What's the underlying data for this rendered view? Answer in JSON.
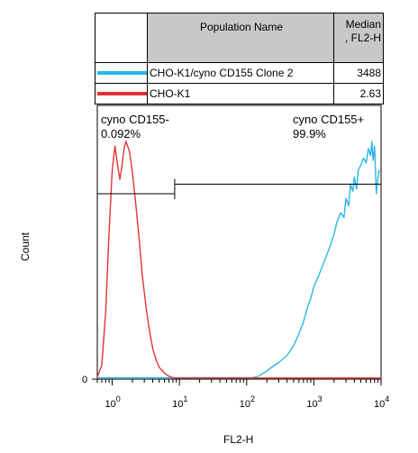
{
  "legend": {
    "header_name": "Population Name",
    "header_median_line1": "Median",
    "header_median_line2": ", FL2-H",
    "rows": [
      {
        "name": "CHO-K1/cyno CD155 Clone 2",
        "median": "3488",
        "color": "#29b6e8"
      },
      {
        "name": "CHO-K1",
        "median": "2.63",
        "color": "#e33434"
      }
    ]
  },
  "chart_data": {
    "type": "line",
    "xlabel": "FL2-H",
    "ylabel": "Count",
    "x_scale": "log",
    "xlim": [
      0.6,
      10000
    ],
    "x_ticks": [
      {
        "base": "10",
        "exp": "0"
      },
      {
        "base": "10",
        "exp": "1"
      },
      {
        "base": "10",
        "exp": "2"
      },
      {
        "base": "10",
        "exp": "3"
      },
      {
        "base": "10",
        "exp": "4"
      }
    ],
    "y_tick_label": "0",
    "ylim": [
      0,
      100
    ],
    "gates": [
      {
        "name": "cyno CD155-",
        "percent": "0.092%",
        "range": [
          0.6,
          8.5
        ],
        "level": 78
      },
      {
        "name": "cyno CD155+",
        "percent": "99.9%",
        "range": [
          8.5,
          10000
        ],
        "level": 82
      }
    ],
    "series": [
      {
        "name": "CHO-K1/cyno CD155 Clone 2",
        "color": "#29b6e8",
        "x": [
          0.6,
          50,
          120,
          150,
          200,
          250,
          300,
          400,
          500,
          600,
          700,
          800,
          900,
          1000,
          1200,
          1500,
          1800,
          2000,
          2200,
          2500,
          2800,
          3000,
          3300,
          3500,
          3800,
          4000,
          4300,
          4600,
          5000,
          5500,
          6000,
          6500,
          7000,
          7300,
          7600,
          8000,
          8500,
          9000,
          9400
        ],
        "y": [
          0.6,
          0.6,
          0.6,
          1.2,
          3.5,
          5.5,
          7,
          10,
          14,
          19,
          24,
          30,
          34,
          39,
          44,
          51,
          57,
          61,
          66,
          70,
          68,
          76,
          73,
          82,
          79,
          85,
          80,
          88,
          90,
          93,
          91,
          97,
          94,
          100,
          92,
          98,
          78,
          85,
          88
        ]
      },
      {
        "name": "CHO-K1",
        "color": "#e33434",
        "x": [
          0.6,
          0.7,
          0.8,
          0.9,
          1.0,
          1.1,
          1.2,
          1.3,
          1.4,
          1.5,
          1.6,
          1.8,
          2.0,
          2.2,
          2.5,
          2.8,
          3.2,
          3.6,
          4.0,
          4.5,
          5.0,
          6.0,
          7.0,
          8.0,
          9.0,
          10000
        ],
        "y": [
          0.8,
          6,
          28,
          62,
          88,
          98,
          90,
          84,
          90,
          97,
          100,
          96,
          87,
          76,
          60,
          44,
          30,
          20,
          13,
          8,
          5,
          2.5,
          1.2,
          0.6,
          0.5,
          0.5
        ]
      }
    ]
  }
}
